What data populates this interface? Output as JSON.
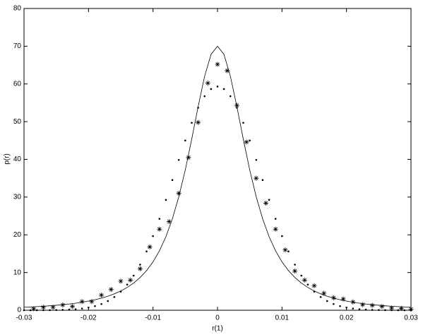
{
  "chart_data": {
    "type": "line",
    "xlabel": "r(1)",
    "ylabel": "p(r)",
    "xlim": [
      -0.03,
      0.03
    ],
    "ylim": [
      0,
      80
    ],
    "xticks": [
      -0.03,
      -0.02,
      -0.01,
      0,
      0.01,
      0.02,
      0.03
    ],
    "yticks": [
      0,
      10,
      20,
      30,
      40,
      50,
      60,
      70,
      80
    ],
    "grid": false,
    "series": [
      {
        "style": "solid",
        "color": "#000000",
        "x": [
          -0.03,
          -0.029,
          -0.028,
          -0.027,
          -0.026,
          -0.025,
          -0.024,
          -0.023,
          -0.022,
          -0.021,
          -0.02,
          -0.019,
          -0.018,
          -0.017,
          -0.016,
          -0.015,
          -0.014,
          -0.013,
          -0.012,
          -0.011,
          -0.01,
          -0.009,
          -0.008,
          -0.007,
          -0.006,
          -0.005,
          -0.004,
          -0.003,
          -0.002,
          -0.001,
          0,
          0.001,
          0.002,
          0.003,
          0.004,
          0.005,
          0.006,
          0.007,
          0.008,
          0.009,
          0.01,
          0.011,
          0.012,
          0.013,
          0.014,
          0.015,
          0.016,
          0.017,
          0.018,
          0.019,
          0.02,
          0.021,
          0.022,
          0.023,
          0.024,
          0.025,
          0.026,
          0.027,
          0.028,
          0.029,
          0.03
        ],
        "values": [
          0.79,
          0.87,
          0.96,
          1.06,
          1.18,
          1.32,
          1.48,
          1.66,
          1.88,
          2.13,
          2.43,
          2.79,
          3.21,
          3.73,
          4.35,
          5.11,
          6.05,
          7.22,
          8.68,
          10.51,
          12.83,
          15.78,
          19.51,
          24.23,
          30.09,
          37.18,
          45.34,
          54.0,
          62.03,
          67.85,
          70,
          67.85,
          62.03,
          54.0,
          45.34,
          37.18,
          30.09,
          24.23,
          19.51,
          15.78,
          12.83,
          10.51,
          8.68,
          7.22,
          6.05,
          5.11,
          4.35,
          3.73,
          3.21,
          2.79,
          2.43,
          2.13,
          1.88,
          1.66,
          1.48,
          1.32,
          1.18,
          1.06,
          0.96,
          0.87,
          0.79
        ]
      },
      {
        "style": "dots",
        "color": "#000000",
        "x": [
          -0.03,
          -0.029,
          -0.028,
          -0.027,
          -0.026,
          -0.025,
          -0.024,
          -0.023,
          -0.022,
          -0.021,
          -0.02,
          -0.019,
          -0.018,
          -0.017,
          -0.016,
          -0.015,
          -0.014,
          -0.013,
          -0.012,
          -0.011,
          -0.01,
          -0.009,
          -0.008,
          -0.007,
          -0.006,
          -0.005,
          -0.004,
          -0.003,
          -0.002,
          -0.001,
          0,
          0.001,
          0.002,
          0.003,
          0.004,
          0.005,
          0.006,
          0.007,
          0.008,
          0.009,
          0.01,
          0.011,
          0.012,
          0.013,
          0.014,
          0.015,
          0.016,
          0.017,
          0.018,
          0.019,
          0.02,
          0.021,
          0.022,
          0.023,
          0.024,
          0.025,
          0.026,
          0.027,
          0.028,
          0.029,
          0.03
        ],
        "values": [
          0.0,
          0.01,
          0.01,
          0.02,
          0.03,
          0.06,
          0.1,
          0.17,
          0.28,
          0.46,
          0.72,
          1.1,
          1.66,
          2.44,
          3.51,
          4.95,
          6.81,
          9.18,
          12.1,
          15.6,
          19.66,
          24.25,
          29.26,
          34.53,
          39.86,
          45.0,
          49.7,
          53.69,
          56.74,
          58.65,
          59.3,
          58.65,
          56.74,
          53.69,
          49.7,
          45.0,
          39.86,
          34.53,
          29.26,
          24.25,
          19.66,
          15.6,
          12.1,
          9.18,
          6.81,
          4.95,
          3.51,
          2.44,
          1.66,
          1.1,
          0.72,
          0.46,
          0.28,
          0.17,
          0.1,
          0.06,
          0.03,
          0.02,
          0.01,
          0.01,
          0.0
        ]
      },
      {
        "style": "asterisk",
        "color": "#000000",
        "x": [
          -0.0285,
          -0.027,
          -0.0255,
          -0.024,
          -0.0225,
          -0.021,
          -0.0195,
          -0.018,
          -0.0165,
          -0.015,
          -0.0135,
          -0.012,
          -0.0105,
          -0.009,
          -0.0075,
          -0.006,
          -0.0045,
          -0.003,
          -0.0015,
          0,
          0.0015,
          0.003,
          0.0045,
          0.006,
          0.0075,
          0.009,
          0.0105,
          0.012,
          0.0135,
          0.015,
          0.0165,
          0.018,
          0.0195,
          0.021,
          0.0225,
          0.024,
          0.0255,
          0.027,
          0.0285,
          0.03
        ],
        "values": [
          0.4,
          0.8,
          0.8,
          1.4,
          1.0,
          2.3,
          2.3,
          4.0,
          5.5,
          7.7,
          8.0,
          11.0,
          16.8,
          21.5,
          23.5,
          31.0,
          40.5,
          49.8,
          60.2,
          65.2,
          63.5,
          54.3,
          44.6,
          35.0,
          28.4,
          21.5,
          16.0,
          10.4,
          8.0,
          6.5,
          4.5,
          3.3,
          3.0,
          2.2,
          1.5,
          1.3,
          1.0,
          0.6,
          0.5,
          0.3
        ]
      }
    ]
  }
}
